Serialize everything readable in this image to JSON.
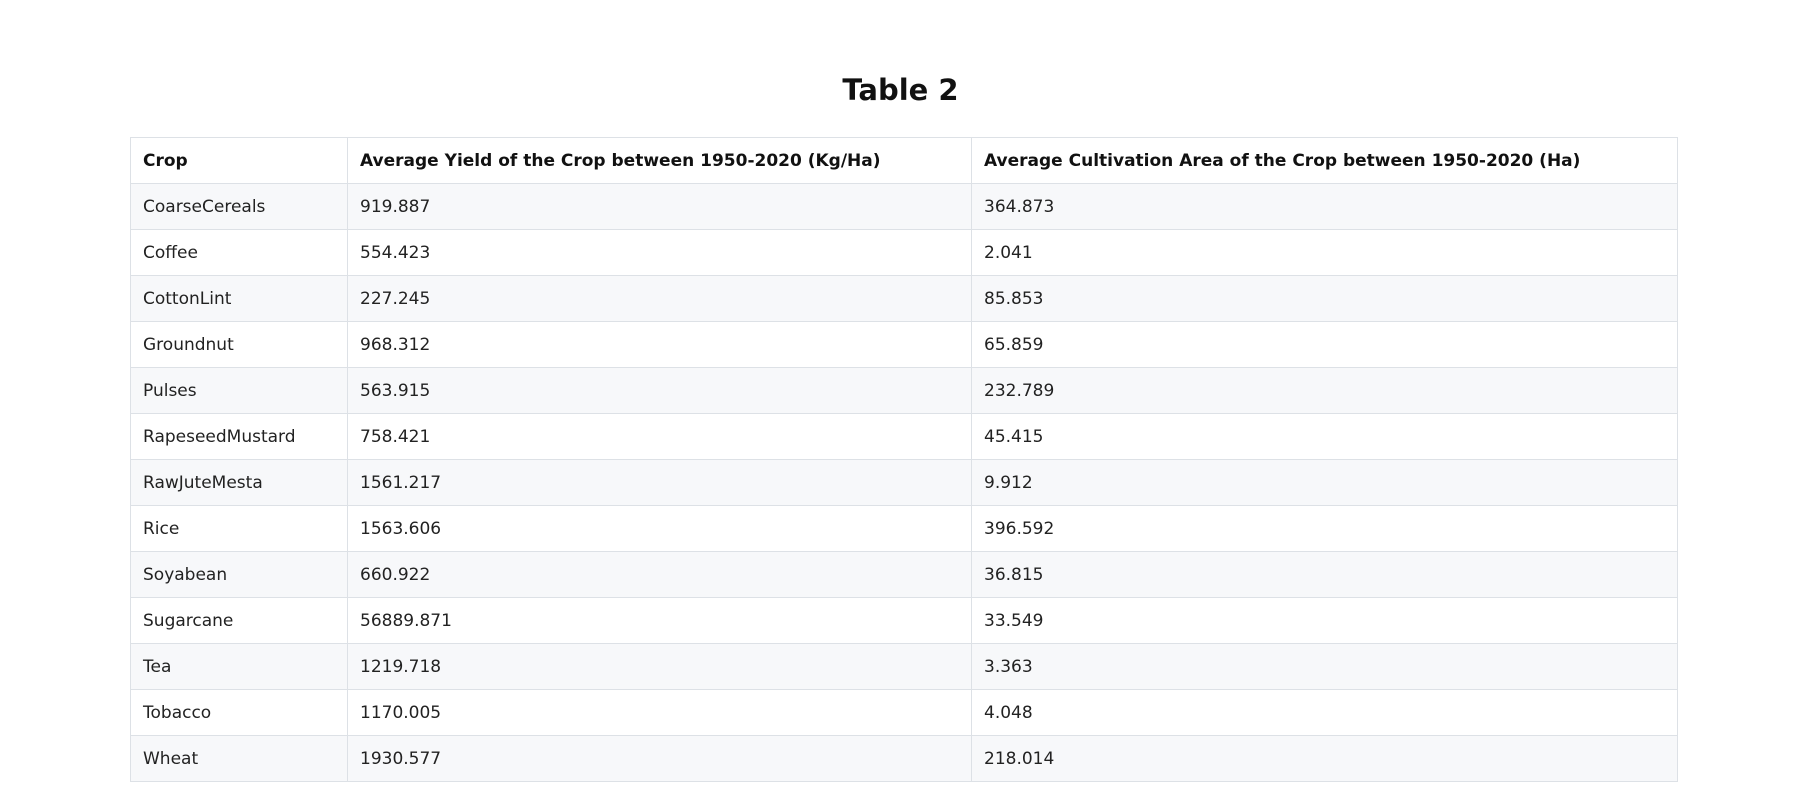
{
  "page": {
    "title": "Table 2"
  },
  "table": {
    "headers": [
      "Crop",
      "Average Yield of the Crop between 1950-2020 (Kg/Ha)",
      "Average Cultivation Area of the Crop between 1950-2020 (Ha)"
    ],
    "rows": [
      [
        "CoarseCereals",
        "919.887",
        "364.873"
      ],
      [
        "Coffee",
        "554.423",
        "2.041"
      ],
      [
        "CottonLint",
        "227.245",
        "85.853"
      ],
      [
        "Groundnut",
        "968.312",
        "65.859"
      ],
      [
        "Pulses",
        "563.915",
        "232.789"
      ],
      [
        "RapeseedMustard",
        "758.421",
        "45.415"
      ],
      [
        "RawJuteMesta",
        "1561.217",
        "9.912"
      ],
      [
        "Rice",
        "1563.606",
        "396.592"
      ],
      [
        "Soyabean",
        "660.922",
        "36.815"
      ],
      [
        "Sugarcane",
        "56889.871",
        "33.549"
      ],
      [
        "Tea",
        "1219.718",
        "3.363"
      ],
      [
        "Tobacco",
        "1170.005",
        "4.048"
      ],
      [
        "Wheat",
        "1930.577",
        "218.014"
      ]
    ]
  },
  "colors": {
    "border": "#dde1e6",
    "row_stripe": "#f7f8fa",
    "background": "#ffffff"
  }
}
